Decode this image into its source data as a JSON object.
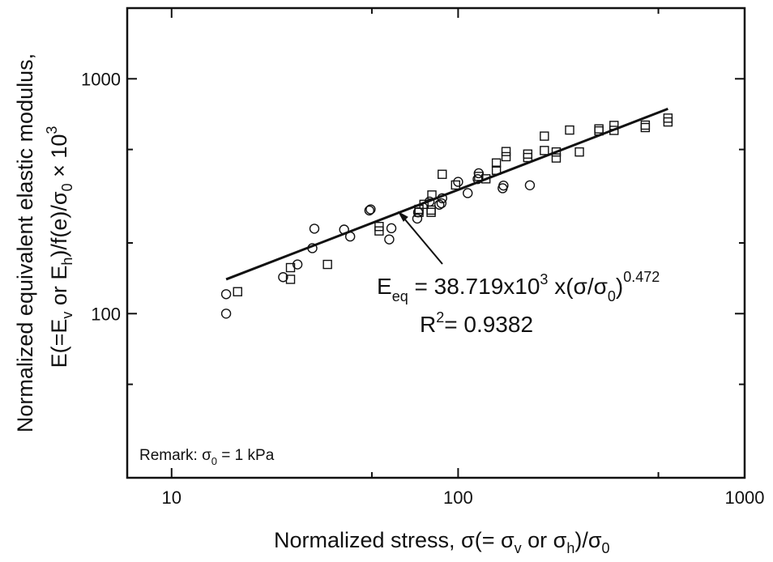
{
  "chart_data": {
    "type": "scatter",
    "x_scale": "log",
    "y_scale": "log",
    "xlim": [
      7,
      1000
    ],
    "ylim": [
      20,
      2000
    ],
    "grid": false,
    "x_ticks": [
      {
        "value": 10,
        "label": "10"
      },
      {
        "value": 100,
        "label": "100"
      },
      {
        "value": 1000,
        "label": "1000"
      }
    ],
    "y_ticks": [
      {
        "value": 100,
        "label": "100"
      },
      {
        "value": 1000,
        "label": "1000"
      }
    ],
    "xlabel": {
      "text": "Normalized stress, σ(= σ",
      "sub1": "v",
      "mid": " or σ",
      "sub2": "h",
      "end": ")/σ",
      "sub3": "0"
    },
    "ylabel_line1": "Normalized equivalent elastic modulus,",
    "ylabel_line2": {
      "a": "E(=E",
      "sub_v": "v",
      "b": " or E",
      "sub_h": "h",
      "c": ")/f(e)/σ",
      "sub_0": "0",
      "d": " × 10",
      "sup": "3"
    },
    "annotation": {
      "eq_lhs": "E",
      "eq_sub": "eq",
      "eq_mid": " = 38.719x10",
      "eq_sup": "3",
      "eq_rest": " x(σ/σ",
      "eq_sub0": "0",
      "eq_close": ")",
      "eq_exp": "0.472",
      "r2_a": "R",
      "r2_sup": "2",
      "r2_b": "= 0.9382"
    },
    "remark": {
      "a": "Remark: σ",
      "sub": "0",
      "b": " = 1 kPa"
    },
    "fit_line": {
      "x": [
        15.5,
        540
      ],
      "y": [
        140,
        745
      ]
    },
    "series": [
      {
        "marker": "circle",
        "x": [
          15.5,
          15.5,
          24.5,
          27.5,
          31.0,
          31.5,
          40.0,
          42.0,
          49.0,
          49.5,
          57.5,
          58.5,
          72.0,
          72.5,
          79.5,
          86.0,
          87.5,
          88.0,
          100.0,
          108.0,
          117.0,
          118.0,
          143.0,
          144.0,
          178.0
        ],
        "y": [
          100,
          121,
          143,
          162,
          190,
          230,
          228,
          213,
          275,
          278,
          207,
          231,
          254,
          270,
          300,
          291,
          295,
          310,
          364,
          326,
          374,
          396,
          342,
          351,
          352
        ]
      },
      {
        "marker": "square",
        "x": [
          17.0,
          26.0,
          26.0,
          35.0,
          53.0,
          53.0,
          73.0,
          73.0,
          76.0,
          80.5,
          80.5,
          81.0,
          88.0,
          98.0,
          118.0,
          125.0,
          136.0,
          136.0,
          147.0,
          147.0,
          175.0,
          175.0,
          200.0,
          200.0,
          220.0,
          220.0,
          245.0,
          265.0,
          310.0,
          310.0,
          350.0,
          350.0,
          450.0,
          450.0,
          540.0,
          540.0
        ],
        "y": [
          124,
          140,
          157,
          162,
          225,
          235,
          270,
          278,
          292,
          270,
          276,
          320,
          392,
          353,
          384,
          375,
          408,
          438,
          466,
          490,
          478,
          462,
          495,
          570,
          460,
          488,
          605,
          488,
          600,
          612,
          603,
          633,
          620,
          635,
          655,
          680
        ]
      }
    ]
  }
}
